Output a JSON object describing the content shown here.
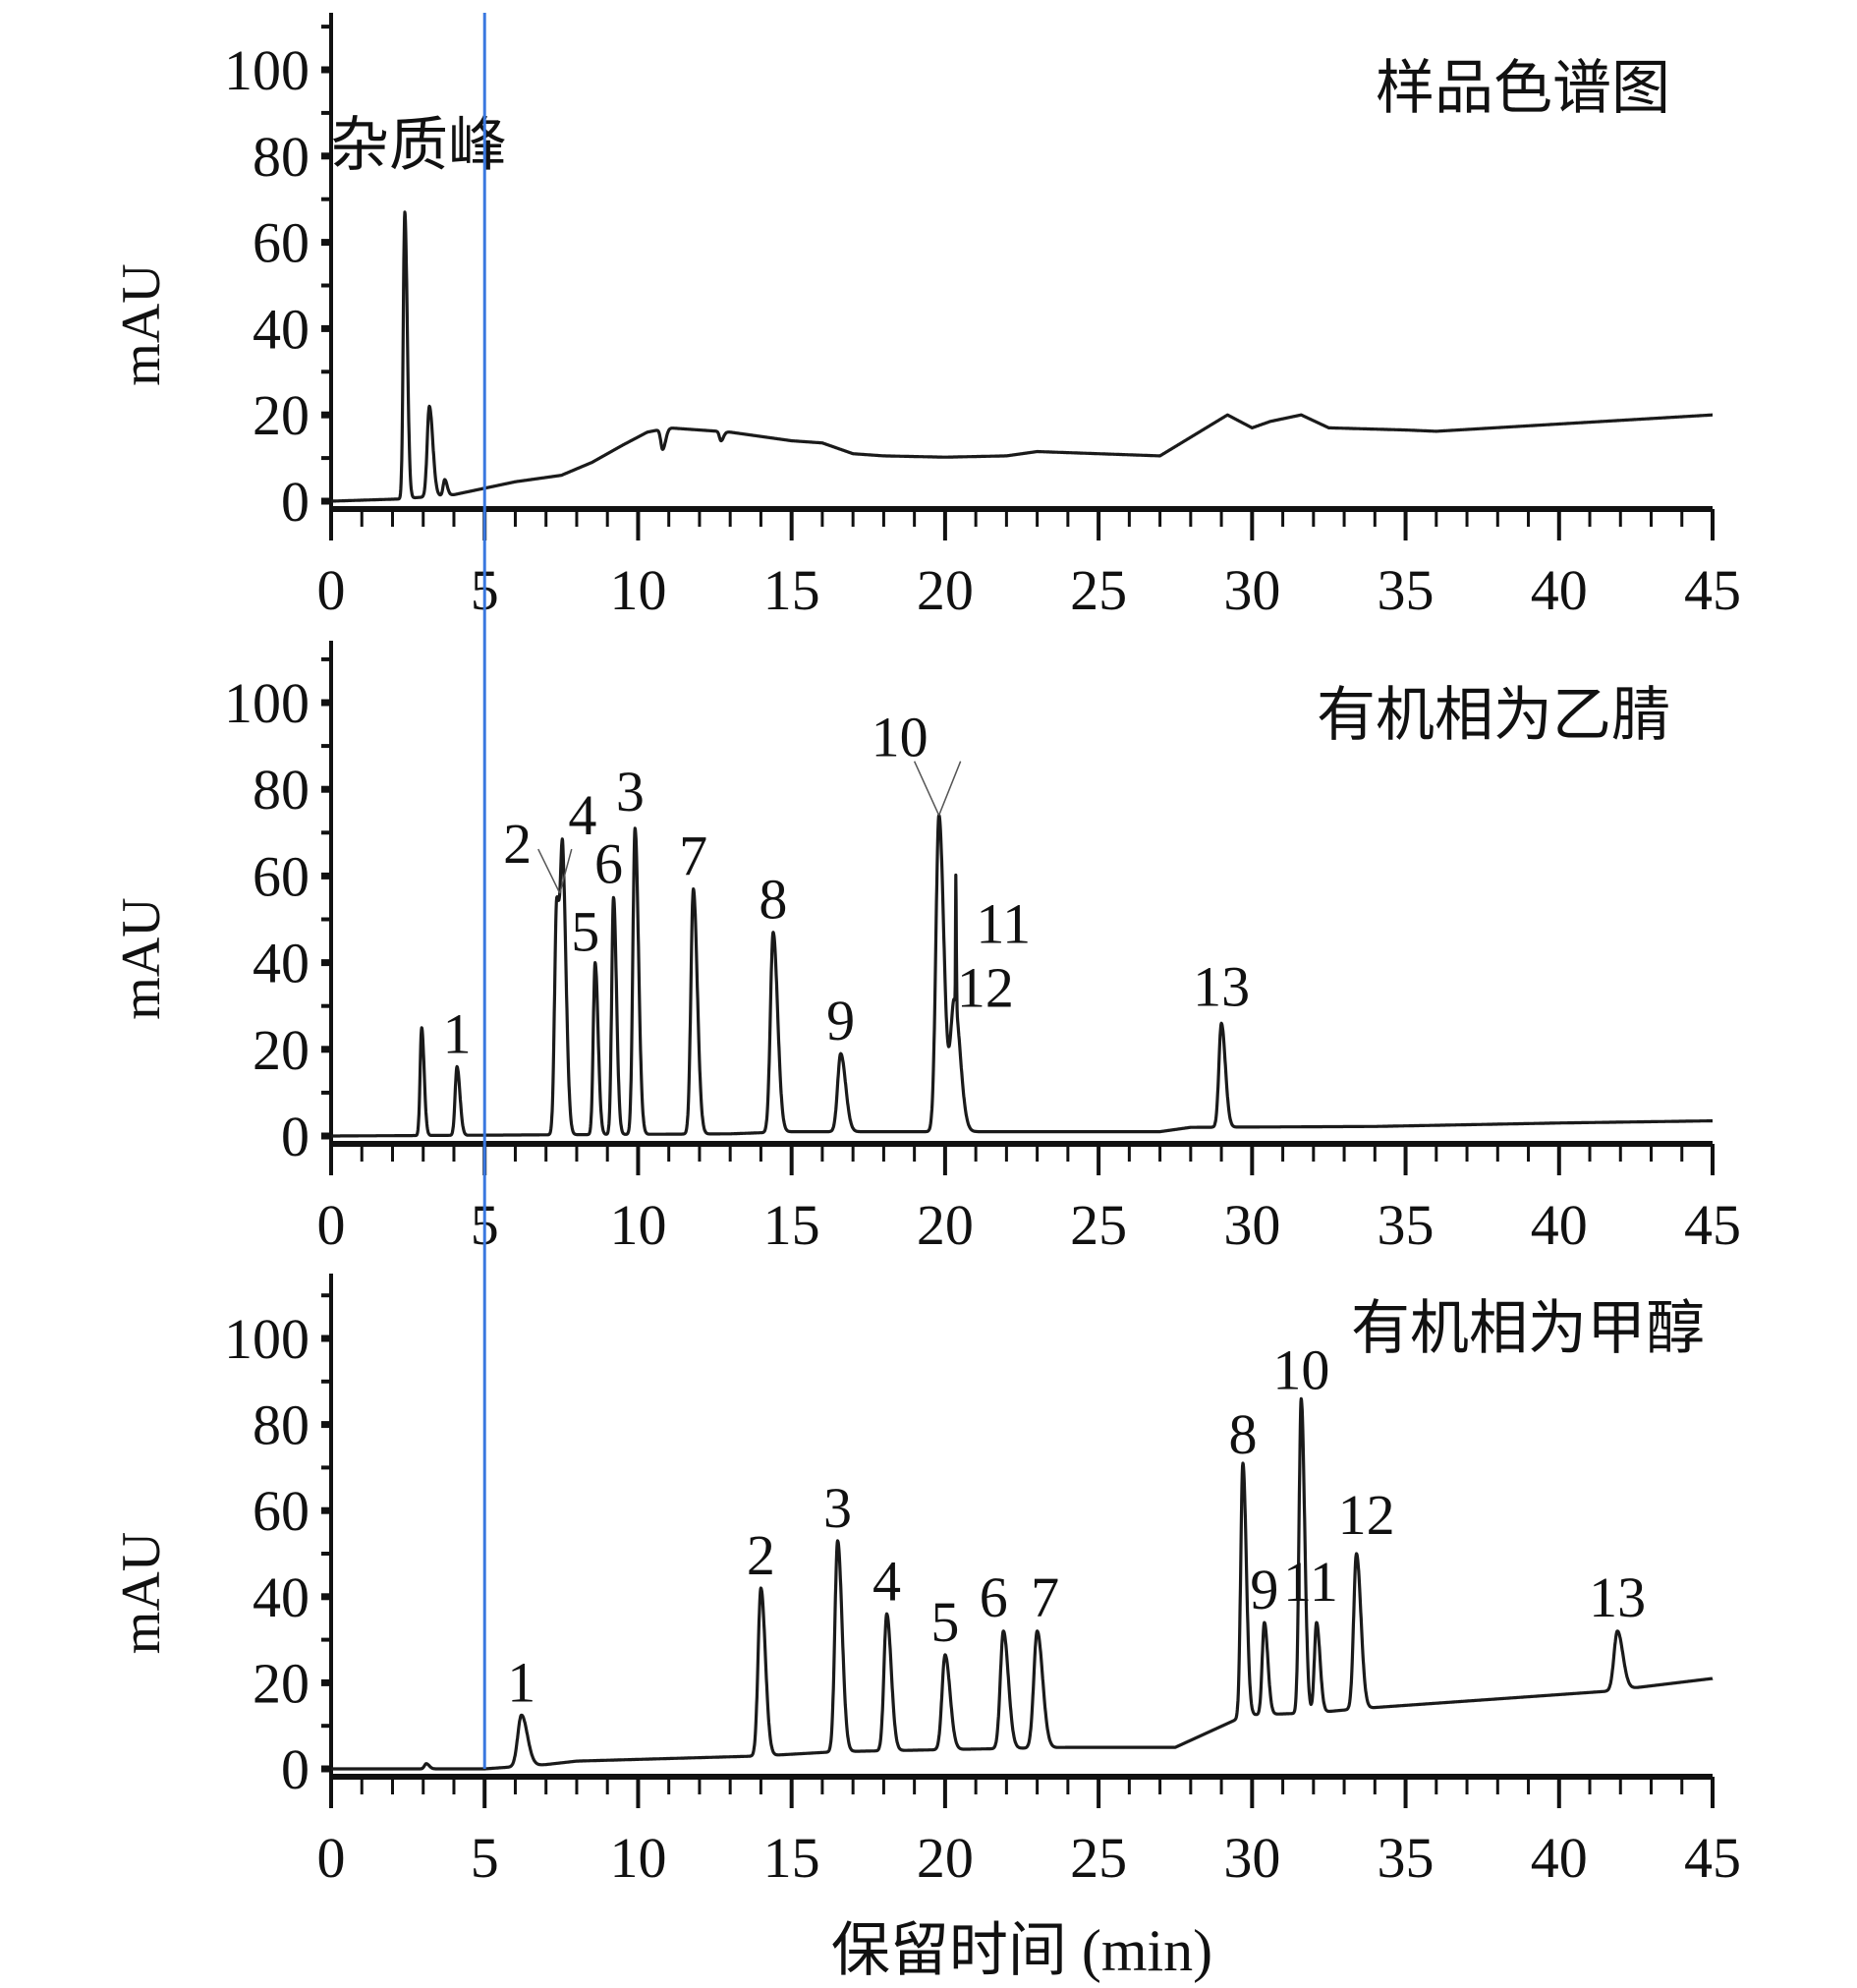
{
  "chart_data": {
    "type": "line",
    "xlabel": "保留时间 (min)",
    "xlim": [
      0,
      45
    ],
    "xticks": [
      0,
      5,
      10,
      15,
      20,
      25,
      30,
      35,
      40,
      45
    ],
    "ylim": [
      0,
      110
    ],
    "yticks": [
      0,
      20,
      40,
      60,
      80,
      100
    ],
    "marker_line_x": 5,
    "marker_line_color": "#3a78e0",
    "line_color": "#1a1a1a",
    "panels": [
      {
        "title": "样品色谱图",
        "ylabel": "mAU",
        "annotation": "杂质峰",
        "baseline": [
          [
            0,
            0
          ],
          [
            2.2,
            0.5
          ],
          [
            4,
            1.5
          ],
          [
            5,
            3
          ],
          [
            6,
            4.5
          ],
          [
            7.5,
            6
          ],
          [
            8.5,
            9
          ],
          [
            9.5,
            13
          ],
          [
            10.3,
            16
          ],
          [
            11,
            17
          ],
          [
            13,
            16
          ],
          [
            15,
            14
          ],
          [
            16,
            13.5
          ],
          [
            17,
            11
          ],
          [
            18,
            10.5
          ],
          [
            20,
            10.2
          ],
          [
            22,
            10.5
          ],
          [
            23,
            11.5
          ],
          [
            27,
            10.5
          ],
          [
            29.2,
            20
          ],
          [
            30,
            17
          ],
          [
            30.6,
            18.5
          ],
          [
            31.6,
            20
          ],
          [
            32.5,
            17
          ],
          [
            35,
            16.5
          ],
          [
            36,
            16.2
          ],
          [
            45,
            20
          ]
        ],
        "peaks": [
          {
            "t": 2.4,
            "top": 67,
            "w": 0.05
          },
          {
            "t": 3.2,
            "top": 22,
            "w": 0.07
          },
          {
            "t": 3.7,
            "top": 5,
            "w": 0.05
          },
          {
            "t": 10.8,
            "top": 12,
            "w": 0.06
          },
          {
            "t": 12.7,
            "top": 14,
            "w": 0.05
          }
        ]
      },
      {
        "title": "有机相为乙腈",
        "ylabel": "mAU",
        "baseline": [
          [
            0,
            0
          ],
          [
            13,
            0.5
          ],
          [
            15,
            1
          ],
          [
            27,
            1
          ],
          [
            28,
            2
          ],
          [
            34,
            2.2
          ],
          [
            40,
            3
          ],
          [
            45,
            3.5
          ]
        ],
        "peaks": [
          {
            "t": 2.95,
            "top": 25,
            "w": 0.05
          },
          {
            "t": 4.1,
            "top": 16,
            "w": 0.06,
            "label": "1"
          },
          {
            "t": 7.35,
            "top": 54,
            "w": 0.07,
            "label": "2"
          },
          {
            "t": 7.55,
            "top": 56,
            "w": 0.07,
            "label": "4"
          },
          {
            "t": 8.6,
            "top": 40,
            "w": 0.06,
            "label": "5"
          },
          {
            "t": 9.2,
            "top": 55,
            "w": 0.06,
            "label": "6"
          },
          {
            "t": 9.9,
            "top": 71,
            "w": 0.07,
            "label": "3"
          },
          {
            "t": 11.8,
            "top": 57,
            "w": 0.08,
            "label": "7"
          },
          {
            "t": 14.4,
            "top": 47,
            "w": 0.09,
            "label": "8"
          },
          {
            "t": 16.6,
            "top": 19,
            "w": 0.1,
            "label": "9"
          },
          {
            "t": 19.8,
            "top": 74,
            "w": 0.1,
            "label": "10"
          },
          {
            "t": 20.3,
            "top": 31,
            "w": 0.12,
            "label": "11"
          },
          {
            "t": 20.35,
            "top": 31,
            "w": 0.01,
            "label": "12"
          },
          {
            "t": 29,
            "top": 26,
            "w": 0.08,
            "label": "13"
          }
        ]
      },
      {
        "title": "有机相为甲醇",
        "ylabel": "mAU",
        "baseline": [
          [
            0,
            0
          ],
          [
            5,
            0
          ],
          [
            7,
            1
          ],
          [
            8,
            1.8
          ],
          [
            14,
            3
          ],
          [
            16.5,
            4
          ],
          [
            24,
            5
          ],
          [
            27.5,
            5
          ],
          [
            29.8,
            12.5
          ],
          [
            32,
            13
          ],
          [
            33.5,
            14
          ],
          [
            41.5,
            18
          ],
          [
            45,
            21
          ]
        ],
        "peaks": [
          {
            "t": 3.1,
            "top": 1.2,
            "w": 0.06
          },
          {
            "t": 6.2,
            "top": 12.5,
            "w": 0.12,
            "label": "1"
          },
          {
            "t": 14,
            "top": 42,
            "w": 0.09,
            "label": "2"
          },
          {
            "t": 16.5,
            "top": 53,
            "w": 0.09,
            "label": "3"
          },
          {
            "t": 18.1,
            "top": 36,
            "w": 0.09,
            "label": "4"
          },
          {
            "t": 20,
            "top": 26.5,
            "w": 0.1,
            "label": "5"
          },
          {
            "t": 21.9,
            "top": 32,
            "w": 0.1,
            "label": "6"
          },
          {
            "t": 23,
            "top": 32,
            "w": 0.11,
            "label": "7"
          },
          {
            "t": 29.7,
            "top": 71,
            "w": 0.07,
            "label": "8"
          },
          {
            "t": 30.4,
            "top": 34,
            "w": 0.07,
            "label": "9"
          },
          {
            "t": 31.6,
            "top": 86,
            "w": 0.07,
            "label": "10"
          },
          {
            "t": 32.1,
            "top": 34,
            "w": 0.07,
            "label": "11"
          },
          {
            "t": 33.4,
            "top": 50,
            "w": 0.09,
            "label": "12"
          },
          {
            "t": 41.9,
            "top": 32,
            "w": 0.11,
            "label": "13"
          }
        ]
      }
    ]
  }
}
